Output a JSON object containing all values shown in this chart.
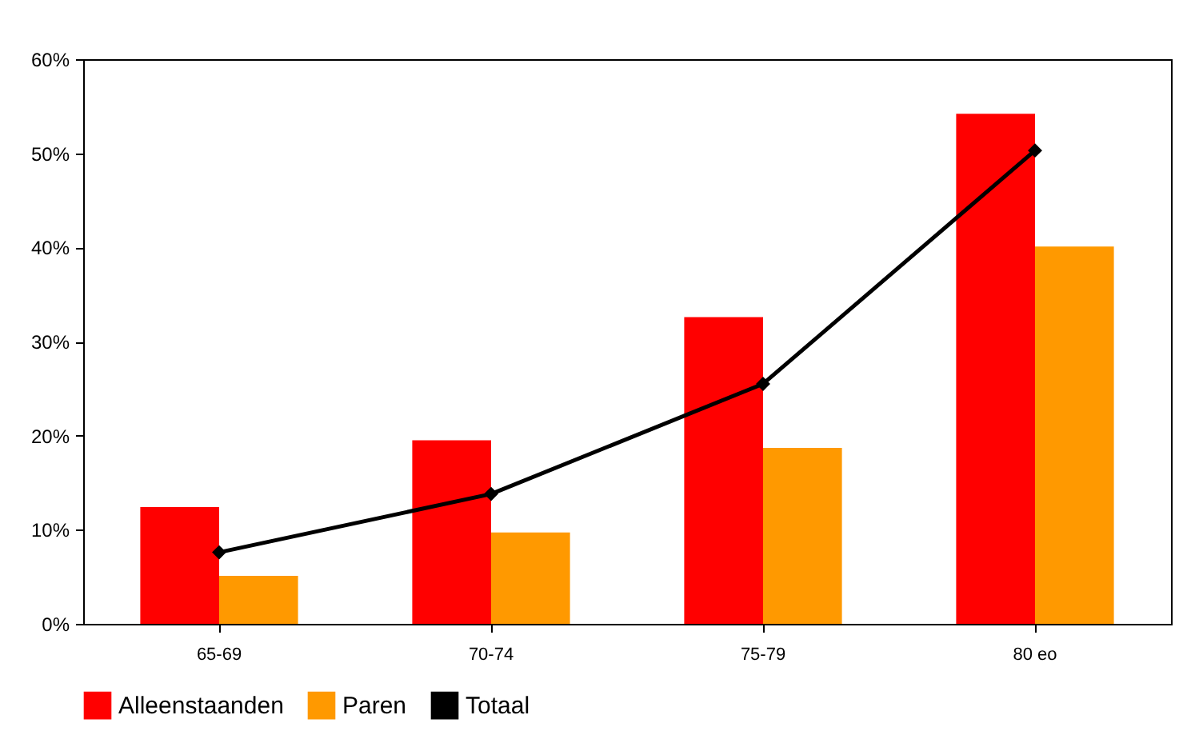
{
  "chart_data": {
    "type": "bar",
    "categories": [
      "65-69",
      "70-74",
      "75-79",
      "80 eo"
    ],
    "series": [
      {
        "name": "Alleenstaanden",
        "color": "#ff0000",
        "values": [
          12.4,
          19.5,
          32.6,
          54.2
        ]
      },
      {
        "name": "Paren",
        "color": "#ff9900",
        "values": [
          5.1,
          9.7,
          18.7,
          40.1
        ]
      },
      {
        "name": "Totaal",
        "color": "#000000",
        "type": "line",
        "values": [
          7.6,
          13.8,
          25.5,
          50.3
        ]
      }
    ],
    "ylim": [
      0,
      60
    ],
    "yticks": [
      {
        "value": 0,
        "label": "0%"
      },
      {
        "value": 10,
        "label": "10%"
      },
      {
        "value": 20,
        "label": "20%"
      },
      {
        "value": 30,
        "label": "30%"
      },
      {
        "value": 40,
        "label": "40%"
      },
      {
        "value": 50,
        "label": "50%"
      },
      {
        "value": 60,
        "label": "60%"
      }
    ],
    "grid": false,
    "legend": "bottom",
    "marker": "diamond",
    "line_style": "solid"
  }
}
